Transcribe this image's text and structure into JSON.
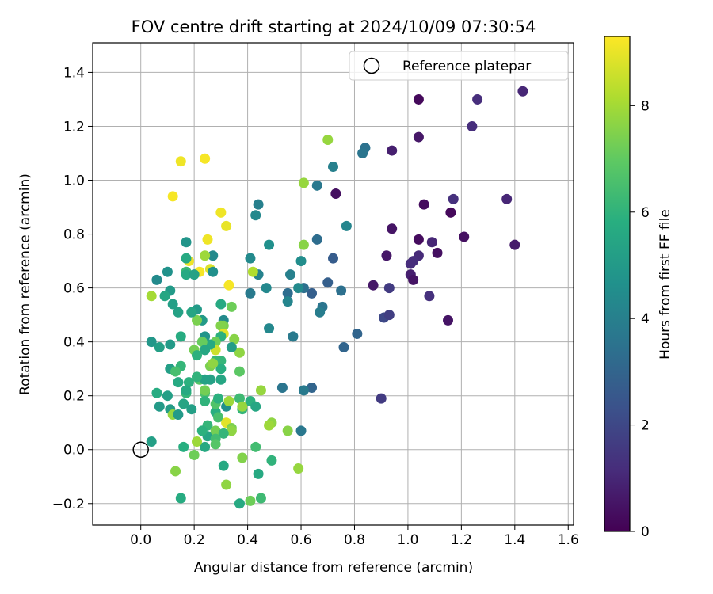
{
  "chart_data": {
    "type": "scatter",
    "title": "FOV centre drift starting at 2024/10/09 07:30:54",
    "xlabel": "Angular distance from reference (arcmin)",
    "ylabel": "Rotation from reference (arcmin)",
    "xlim": [
      -0.18,
      1.62
    ],
    "ylim": [
      -0.28,
      1.51
    ],
    "x_ticks": [
      "0.0",
      "0.2",
      "0.4",
      "0.6",
      "0.8",
      "1.0",
      "1.2",
      "1.4",
      "1.6"
    ],
    "y_ticks": [
      "−0.2",
      "0.0",
      "0.2",
      "0.4",
      "0.6",
      "0.8",
      "1.0",
      "1.2",
      "1.4"
    ],
    "grid": true,
    "legend": {
      "position": "top-right",
      "entries": [
        "Reference platepar"
      ]
    },
    "reference_point": {
      "x": 0.0,
      "y": 0.0
    },
    "colorbar": {
      "label": "Hours from first FF file",
      "colormap": "viridis",
      "range": [
        0,
        9.3
      ],
      "ticks": [
        "0",
        "2",
        "4",
        "6",
        "8"
      ]
    },
    "points": [
      {
        "x": 1.04,
        "y": 1.3,
        "c": 0.2
      },
      {
        "x": 1.26,
        "y": 1.3,
        "c": 1.2
      },
      {
        "x": 1.43,
        "y": 1.33,
        "c": 1.0
      },
      {
        "x": 1.24,
        "y": 1.2,
        "c": 1.2
      },
      {
        "x": 1.04,
        "y": 1.16,
        "c": 0.6
      },
      {
        "x": 0.94,
        "y": 1.11,
        "c": 0.8
      },
      {
        "x": 0.84,
        "y": 1.12,
        "c": 3.5
      },
      {
        "x": 0.83,
        "y": 1.1,
        "c": 3.6
      },
      {
        "x": 0.72,
        "y": 1.05,
        "c": 4.0
      },
      {
        "x": 0.7,
        "y": 1.15,
        "c": 7.8
      },
      {
        "x": 0.66,
        "y": 0.98,
        "c": 3.7
      },
      {
        "x": 0.73,
        "y": 0.95,
        "c": 0.4
      },
      {
        "x": 1.17,
        "y": 0.93,
        "c": 1.3
      },
      {
        "x": 1.37,
        "y": 0.93,
        "c": 1.0
      },
      {
        "x": 1.06,
        "y": 0.91,
        "c": 0.3
      },
      {
        "x": 1.16,
        "y": 0.88,
        "c": 0.2
      },
      {
        "x": 0.94,
        "y": 0.82,
        "c": 0.5
      },
      {
        "x": 1.04,
        "y": 0.78,
        "c": 0.3
      },
      {
        "x": 1.09,
        "y": 0.77,
        "c": 1.0
      },
      {
        "x": 1.21,
        "y": 0.79,
        "c": 0.4
      },
      {
        "x": 1.4,
        "y": 0.76,
        "c": 0.7
      },
      {
        "x": 1.11,
        "y": 0.73,
        "c": 0.4
      },
      {
        "x": 1.04,
        "y": 0.72,
        "c": 1.1
      },
      {
        "x": 0.92,
        "y": 0.72,
        "c": 0.6
      },
      {
        "x": 1.02,
        "y": 0.7,
        "c": 1.2
      },
      {
        "x": 1.01,
        "y": 0.69,
        "c": 1.2
      },
      {
        "x": 1.01,
        "y": 0.65,
        "c": 0.8
      },
      {
        "x": 1.02,
        "y": 0.63,
        "c": 0.5
      },
      {
        "x": 0.87,
        "y": 0.61,
        "c": 0.6
      },
      {
        "x": 0.93,
        "y": 0.6,
        "c": 1.6
      },
      {
        "x": 1.08,
        "y": 0.57,
        "c": 1.3
      },
      {
        "x": 1.15,
        "y": 0.48,
        "c": 0.5
      },
      {
        "x": 0.91,
        "y": 0.49,
        "c": 2.0
      },
      {
        "x": 0.93,
        "y": 0.5,
        "c": 1.7
      },
      {
        "x": 0.9,
        "y": 0.19,
        "c": 1.6
      },
      {
        "x": 0.81,
        "y": 0.43,
        "c": 3.0
      },
      {
        "x": 0.76,
        "y": 0.38,
        "c": 3.0
      },
      {
        "x": 0.75,
        "y": 0.59,
        "c": 3.4
      },
      {
        "x": 0.77,
        "y": 0.83,
        "c": 4.2
      },
      {
        "x": 0.72,
        "y": 0.71,
        "c": 2.7
      },
      {
        "x": 0.7,
        "y": 0.62,
        "c": 2.8
      },
      {
        "x": 0.68,
        "y": 0.53,
        "c": 3.6
      },
      {
        "x": 0.67,
        "y": 0.51,
        "c": 3.9
      },
      {
        "x": 0.66,
        "y": 0.78,
        "c": 3.3
      },
      {
        "x": 0.64,
        "y": 0.58,
        "c": 2.8
      },
      {
        "x": 0.64,
        "y": 0.23,
        "c": 3.0
      },
      {
        "x": 0.61,
        "y": 0.76,
        "c": 7.6
      },
      {
        "x": 0.61,
        "y": 0.99,
        "c": 7.8
      },
      {
        "x": 0.6,
        "y": 0.7,
        "c": 4.5
      },
      {
        "x": 0.61,
        "y": 0.6,
        "c": 3.4
      },
      {
        "x": 0.59,
        "y": 0.6,
        "c": 4.4
      },
      {
        "x": 0.57,
        "y": 0.42,
        "c": 3.8
      },
      {
        "x": 0.56,
        "y": 0.65,
        "c": 4.0
      },
      {
        "x": 0.55,
        "y": 0.58,
        "c": 3.3
      },
      {
        "x": 0.55,
        "y": 0.55,
        "c": 4.2
      },
      {
        "x": 0.53,
        "y": 0.23,
        "c": 3.6
      },
      {
        "x": 0.6,
        "y": 0.07,
        "c": 3.7
      },
      {
        "x": 0.61,
        "y": 0.22,
        "c": 3.8
      },
      {
        "x": 0.59,
        "y": -0.07,
        "c": 7.8
      },
      {
        "x": 0.55,
        "y": 0.07,
        "c": 7.6
      },
      {
        "x": 0.49,
        "y": 0.1,
        "c": 7.7
      },
      {
        "x": 0.48,
        "y": 0.09,
        "c": 7.9
      },
      {
        "x": 0.47,
        "y": 0.6,
        "c": 4.3
      },
      {
        "x": 0.48,
        "y": 0.76,
        "c": 4.6
      },
      {
        "x": 0.48,
        "y": 0.45,
        "c": 4.3
      },
      {
        "x": 0.45,
        "y": 0.22,
        "c": 7.8
      },
      {
        "x": 0.49,
        "y": -0.04,
        "c": 6.0
      },
      {
        "x": 0.45,
        "y": -0.18,
        "c": 6.3
      },
      {
        "x": 0.44,
        "y": -0.09,
        "c": 5.6
      },
      {
        "x": 0.43,
        "y": 0.01,
        "c": 6.4
      },
      {
        "x": 0.44,
        "y": 0.65,
        "c": 4.1
      },
      {
        "x": 0.43,
        "y": 0.87,
        "c": 4.3
      },
      {
        "x": 0.44,
        "y": 0.91,
        "c": 4.0
      },
      {
        "x": 0.41,
        "y": 0.71,
        "c": 4.4
      },
      {
        "x": 0.42,
        "y": 0.66,
        "c": 8.2
      },
      {
        "x": 0.41,
        "y": 0.58,
        "c": 3.8
      },
      {
        "x": 0.41,
        "y": -0.19,
        "c": 7.2
      },
      {
        "x": 0.37,
        "y": -0.2,
        "c": 5.6
      },
      {
        "x": 0.38,
        "y": -0.03,
        "c": 7.5
      },
      {
        "x": 0.41,
        "y": 0.18,
        "c": 5.9
      },
      {
        "x": 0.43,
        "y": 0.16,
        "c": 5.5
      },
      {
        "x": 0.38,
        "y": 0.15,
        "c": 6.1
      },
      {
        "x": 0.37,
        "y": 0.19,
        "c": 6.3
      },
      {
        "x": 0.38,
        "y": 0.16,
        "c": 7.8
      },
      {
        "x": 0.37,
        "y": 0.36,
        "c": 7.7
      },
      {
        "x": 0.37,
        "y": 0.29,
        "c": 6.9
      },
      {
        "x": 0.35,
        "y": 0.41,
        "c": 7.6
      },
      {
        "x": 0.34,
        "y": 0.38,
        "c": 5.1
      },
      {
        "x": 0.34,
        "y": 0.53,
        "c": 7.2
      },
      {
        "x": 0.33,
        "y": 0.61,
        "c": 9.2
      },
      {
        "x": 0.32,
        "y": 0.83,
        "c": 9.0
      },
      {
        "x": 0.3,
        "y": 0.88,
        "c": 9.1
      },
      {
        "x": 0.24,
        "y": 1.08,
        "c": 9.2
      },
      {
        "x": 0.15,
        "y": 1.07,
        "c": 9.1
      },
      {
        "x": 0.12,
        "y": 0.94,
        "c": 9.2
      },
      {
        "x": 0.25,
        "y": 0.78,
        "c": 9.1
      },
      {
        "x": 0.27,
        "y": 0.72,
        "c": 4.4
      },
      {
        "x": 0.24,
        "y": 0.72,
        "c": 7.9
      },
      {
        "x": 0.26,
        "y": 0.67,
        "c": 8.8
      },
      {
        "x": 0.22,
        "y": 0.66,
        "c": 9.2
      },
      {
        "x": 0.18,
        "y": 0.7,
        "c": 9.1
      },
      {
        "x": 0.17,
        "y": 0.77,
        "c": 4.8
      },
      {
        "x": 0.17,
        "y": 0.71,
        "c": 5.6
      },
      {
        "x": 0.17,
        "y": 0.66,
        "c": 6.2
      },
      {
        "x": 0.17,
        "y": 0.65,
        "c": 5.6
      },
      {
        "x": 0.2,
        "y": 0.65,
        "c": 5.3
      },
      {
        "x": 0.27,
        "y": 0.66,
        "c": 4.6
      },
      {
        "x": 0.3,
        "y": 0.54,
        "c": 5.6
      },
      {
        "x": 0.31,
        "y": 0.48,
        "c": 4.4
      },
      {
        "x": 0.31,
        "y": 0.46,
        "c": 7.4
      },
      {
        "x": 0.3,
        "y": 0.46,
        "c": 7.5
      },
      {
        "x": 0.31,
        "y": 0.43,
        "c": 8.9
      },
      {
        "x": 0.3,
        "y": 0.42,
        "c": 5.9
      },
      {
        "x": 0.28,
        "y": 0.4,
        "c": 7.2
      },
      {
        "x": 0.28,
        "y": 0.37,
        "c": 8.6
      },
      {
        "x": 0.3,
        "y": 0.33,
        "c": 6.1
      },
      {
        "x": 0.3,
        "y": 0.3,
        "c": 5.8
      },
      {
        "x": 0.3,
        "y": 0.26,
        "c": 5.5
      },
      {
        "x": 0.28,
        "y": 0.33,
        "c": 6.2
      },
      {
        "x": 0.26,
        "y": 0.31,
        "c": 7.4
      },
      {
        "x": 0.26,
        "y": 0.26,
        "c": 5.3
      },
      {
        "x": 0.27,
        "y": 0.32,
        "c": 7.7
      },
      {
        "x": 0.26,
        "y": 0.39,
        "c": 5.6
      },
      {
        "x": 0.24,
        "y": 0.42,
        "c": 4.8
      },
      {
        "x": 0.23,
        "y": 0.4,
        "c": 7.1
      },
      {
        "x": 0.24,
        "y": 0.37,
        "c": 5.5
      },
      {
        "x": 0.23,
        "y": 0.48,
        "c": 5.0
      },
      {
        "x": 0.21,
        "y": 0.52,
        "c": 5.0
      },
      {
        "x": 0.21,
        "y": 0.48,
        "c": 7.4
      },
      {
        "x": 0.19,
        "y": 0.51,
        "c": 5.4
      },
      {
        "x": 0.2,
        "y": 0.37,
        "c": 7.3
      },
      {
        "x": 0.21,
        "y": 0.35,
        "c": 5.9
      },
      {
        "x": 0.22,
        "y": 0.26,
        "c": 6.8
      },
      {
        "x": 0.24,
        "y": 0.21,
        "c": 6.6
      },
      {
        "x": 0.24,
        "y": 0.22,
        "c": 7.3
      },
      {
        "x": 0.24,
        "y": 0.26,
        "c": 5.3
      },
      {
        "x": 0.21,
        "y": 0.27,
        "c": 6.0
      },
      {
        "x": 0.18,
        "y": 0.25,
        "c": 5.9
      },
      {
        "x": 0.17,
        "y": 0.21,
        "c": 6.1
      },
      {
        "x": 0.17,
        "y": 0.22,
        "c": 5.6
      },
      {
        "x": 0.16,
        "y": 0.17,
        "c": 5.4
      },
      {
        "x": 0.15,
        "y": 0.31,
        "c": 6.1
      },
      {
        "x": 0.15,
        "y": 0.42,
        "c": 5.7
      },
      {
        "x": 0.14,
        "y": 0.51,
        "c": 5.3
      },
      {
        "x": 0.12,
        "y": 0.54,
        "c": 5.2
      },
      {
        "x": 0.11,
        "y": 0.59,
        "c": 5.0
      },
      {
        "x": 0.09,
        "y": 0.57,
        "c": 5.5
      },
      {
        "x": 0.1,
        "y": 0.66,
        "c": 4.7
      },
      {
        "x": 0.06,
        "y": 0.63,
        "c": 4.4
      },
      {
        "x": 0.04,
        "y": 0.57,
        "c": 8.0
      },
      {
        "x": 0.04,
        "y": 0.4,
        "c": 4.9
      },
      {
        "x": 0.07,
        "y": 0.38,
        "c": 5.2
      },
      {
        "x": 0.11,
        "y": 0.39,
        "c": 5.0
      },
      {
        "x": 0.11,
        "y": 0.3,
        "c": 5.2
      },
      {
        "x": 0.13,
        "y": 0.29,
        "c": 6.5
      },
      {
        "x": 0.14,
        "y": 0.25,
        "c": 5.6
      },
      {
        "x": 0.1,
        "y": 0.2,
        "c": 5.2
      },
      {
        "x": 0.06,
        "y": 0.21,
        "c": 5.7
      },
      {
        "x": 0.07,
        "y": 0.16,
        "c": 5.0
      },
      {
        "x": 0.11,
        "y": 0.15,
        "c": 5.1
      },
      {
        "x": 0.12,
        "y": 0.13,
        "c": 7.8
      },
      {
        "x": 0.14,
        "y": 0.13,
        "c": 5.0
      },
      {
        "x": 0.19,
        "y": 0.15,
        "c": 5.2
      },
      {
        "x": 0.24,
        "y": 0.18,
        "c": 6.0
      },
      {
        "x": 0.25,
        "y": 0.09,
        "c": 6.1
      },
      {
        "x": 0.25,
        "y": 0.05,
        "c": 5.4
      },
      {
        "x": 0.28,
        "y": 0.07,
        "c": 7.3
      },
      {
        "x": 0.28,
        "y": 0.14,
        "c": 5.8
      },
      {
        "x": 0.29,
        "y": 0.12,
        "c": 6.5
      },
      {
        "x": 0.28,
        "y": 0.17,
        "c": 6.7
      },
      {
        "x": 0.29,
        "y": 0.19,
        "c": 5.9
      },
      {
        "x": 0.32,
        "y": 0.1,
        "c": 8.9
      },
      {
        "x": 0.32,
        "y": 0.16,
        "c": 4.6
      },
      {
        "x": 0.33,
        "y": 0.18,
        "c": 7.9
      },
      {
        "x": 0.34,
        "y": 0.08,
        "c": 7.4
      },
      {
        "x": 0.34,
        "y": 0.07,
        "c": 7.7
      },
      {
        "x": 0.31,
        "y": 0.06,
        "c": 6.1
      },
      {
        "x": 0.28,
        "y": 0.04,
        "c": 6.4
      },
      {
        "x": 0.28,
        "y": 0.02,
        "c": 6.8
      },
      {
        "x": 0.23,
        "y": 0.07,
        "c": 5.9
      },
      {
        "x": 0.24,
        "y": 0.01,
        "c": 5.6
      },
      {
        "x": 0.21,
        "y": 0.03,
        "c": 7.9
      },
      {
        "x": 0.2,
        "y": -0.02,
        "c": 7.2
      },
      {
        "x": 0.16,
        "y": 0.01,
        "c": 5.8
      },
      {
        "x": 0.13,
        "y": -0.08,
        "c": 7.6
      },
      {
        "x": 0.15,
        "y": -0.18,
        "c": 5.7
      },
      {
        "x": 0.31,
        "y": -0.06,
        "c": 5.6
      },
      {
        "x": 0.32,
        "y": -0.13,
        "c": 7.7
      },
      {
        "x": 0.04,
        "y": 0.03,
        "c": 5.2
      }
    ]
  }
}
